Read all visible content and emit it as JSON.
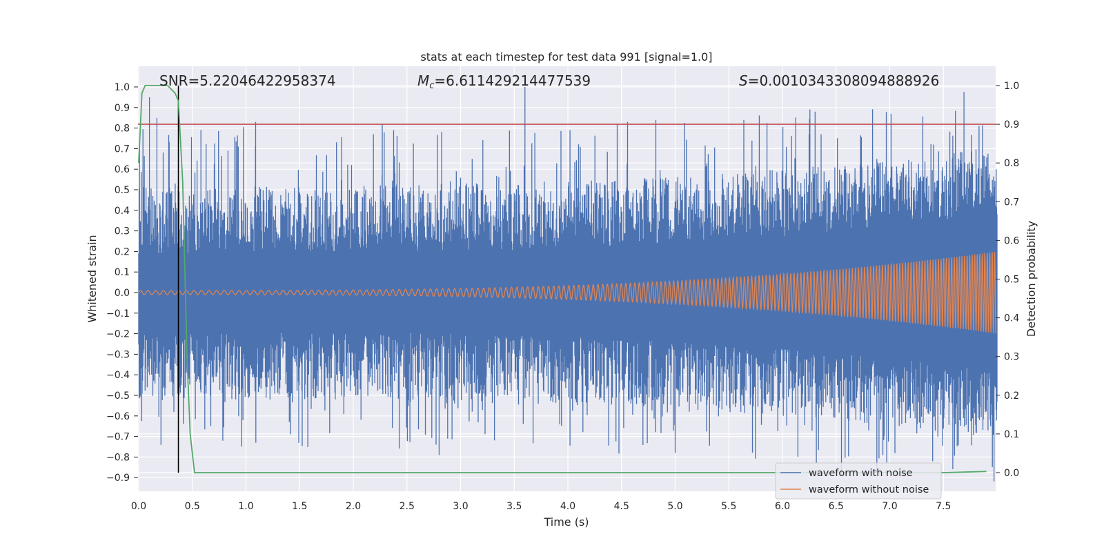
{
  "chart_data": {
    "type": "line",
    "title": "stats at each timestep for test data 991 [signal=1.0]",
    "xlabel": "Time (s)",
    "ylabel": "Whitened strain",
    "y2label": "Detection probability",
    "xlim": [
      0.0,
      8.0
    ],
    "ylim": [
      -0.99,
      1.09
    ],
    "y2lim": [
      -0.045,
      1.045
    ],
    "xticks": [
      "0.0",
      "0.5",
      "1.0",
      "1.5",
      "2.0",
      "2.5",
      "3.0",
      "3.5",
      "4.0",
      "4.5",
      "5.0",
      "5.5",
      "6.0",
      "6.5",
      "7.0",
      "7.5"
    ],
    "yticks": [
      "1.0",
      "0.9",
      "0.8",
      "0.7",
      "0.6",
      "0.5",
      "0.4",
      "0.3",
      "0.2",
      "0.1",
      "0.0",
      "-0.1",
      "-0.2",
      "-0.3",
      "-0.4",
      "-0.5",
      "-0.6",
      "-0.7",
      "-0.8",
      "-0.9"
    ],
    "y2ticks": [
      "1.0",
      "0.9",
      "0.8",
      "0.7",
      "0.6",
      "0.5",
      "0.4",
      "0.3",
      "0.2",
      "0.1",
      "0.0"
    ],
    "annotations": {
      "snr": "SNR=5.22046422958374",
      "mc_symbol": "M",
      "mc_sub": "c",
      "mc_value": "=6.611429214477539",
      "s_symbol": "S",
      "s_value": "=0.0010343308094888926"
    },
    "legend": {
      "position": "lower-right",
      "entries": [
        "waveform with noise",
        "waveform without noise"
      ]
    },
    "colors": {
      "noise": "#4c72b0",
      "clean": "#dd8452",
      "prob": "#55a868",
      "threshold": "#c44e52",
      "marker": "#000000",
      "background": "#eaeaf2"
    },
    "series": [
      {
        "name": "waveform with noise",
        "axis": "left",
        "envelope_core": 0.2,
        "peaks": [
          [
            0.17,
            0.85
          ],
          [
            0.1,
            0.95
          ],
          [
            1.09,
            0.83
          ],
          [
            2.27,
            0.82
          ],
          [
            3.6,
            1.0
          ],
          [
            5.64,
            0.84
          ],
          [
            6.55,
            -0.89
          ],
          [
            7.4,
            -0.82
          ],
          [
            2.8,
            -0.79
          ],
          [
            5.0,
            -0.78
          ]
        ]
      },
      {
        "name": "waveform without noise",
        "axis": "left",
        "amp_start": 0.01,
        "amp_end": 0.2,
        "t_merger": 7.99
      },
      {
        "name": "detection probability",
        "axis": "right",
        "x": [
          0.0,
          0.03,
          0.06,
          0.11,
          0.2,
          0.27,
          0.34,
          0.37,
          0.41,
          0.45,
          0.48,
          0.52,
          0.6,
          1.0,
          3.0,
          6.0,
          7.5,
          7.9
        ],
        "y": [
          0.8,
          0.98,
          1.0,
          1.0,
          1.0,
          1.0,
          0.98,
          0.96,
          0.75,
          0.3,
          0.1,
          0.0,
          0.0,
          0.0,
          0.0,
          0.0,
          0.0,
          0.003
        ]
      }
    ],
    "threshold_y2": 0.9,
    "marker_x": 0.37
  }
}
